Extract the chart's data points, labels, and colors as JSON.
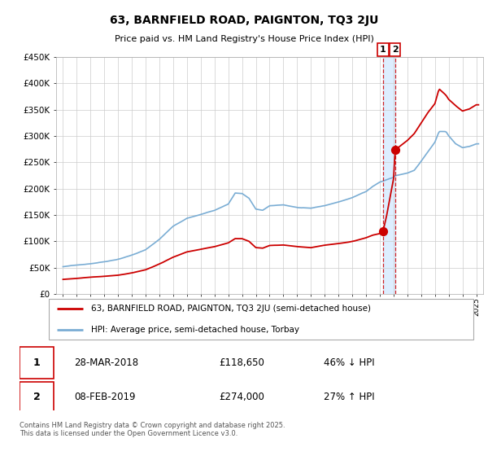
{
  "title1": "63, BARNFIELD ROAD, PAIGNTON, TQ3 2JU",
  "title2": "Price paid vs. HM Land Registry's House Price Index (HPI)",
  "legend_line1": "63, BARNFIELD ROAD, PAIGNTON, TQ3 2JU (semi-detached house)",
  "legend_line2": "HPI: Average price, semi-detached house, Torbay",
  "transaction1": {
    "label": "1",
    "date": "28-MAR-2018",
    "price": 118650,
    "hpi_text": "46% ↓ HPI",
    "x_year": 2018.23
  },
  "transaction2": {
    "label": "2",
    "date": "08-FEB-2019",
    "price": 274000,
    "hpi_text": "27% ↑ HPI",
    "x_year": 2019.11
  },
  "footnote": "Contains HM Land Registry data © Crown copyright and database right 2025.\nThis data is licensed under the Open Government Licence v3.0.",
  "hpi_color": "#7aadd4",
  "price_color": "#cc0000",
  "vband_color": "#ddeeff",
  "ylim": [
    0,
    450000
  ],
  "yticks": [
    0,
    50000,
    100000,
    150000,
    200000,
    250000,
    300000,
    350000,
    400000,
    450000
  ],
  "xlim_start": 1994.5,
  "xlim_end": 2025.5
}
